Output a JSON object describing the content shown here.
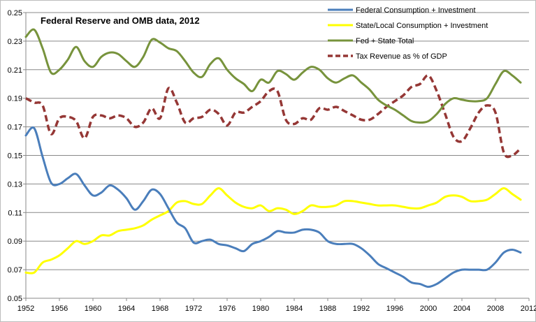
{
  "chart_data": {
    "type": "line",
    "title": "Federal Reserve and OMB data, 2012",
    "xlabel": "",
    "ylabel": "",
    "xlim": [
      1952,
      2012
    ],
    "ylim": [
      0.05,
      0.25
    ],
    "x_ticks": [
      "1952",
      "1956",
      "1960",
      "1964",
      "1968",
      "1972",
      "1976",
      "1980",
      "1984",
      "1988",
      "1992",
      "1996",
      "2000",
      "2004",
      "2008",
      "2012"
    ],
    "y_ticks": [
      "0.05",
      "0.07",
      "0.09",
      "0.11",
      "0.13",
      "0.15",
      "0.17",
      "0.19",
      "0.21",
      "0.23",
      "0.25"
    ],
    "grid": "horizontal",
    "legend_position": "top-right",
    "series": [
      {
        "name": "Federal Consumption + Investment",
        "color": "#4a7ebb",
        "dash": "solid",
        "x": [
          1952,
          1953,
          1954,
          1955,
          1956,
          1957,
          1958,
          1959,
          1960,
          1961,
          1962,
          1963,
          1964,
          1965,
          1966,
          1967,
          1968,
          1969,
          1970,
          1971,
          1972,
          1973,
          1974,
          1975,
          1976,
          1977,
          1978,
          1979,
          1980,
          1981,
          1982,
          1983,
          1984,
          1985,
          1986,
          1987,
          1988,
          1989,
          1990,
          1991,
          1992,
          1993,
          1994,
          1995,
          1996,
          1997,
          1998,
          1999,
          2000,
          2001,
          2002,
          2003,
          2004,
          2005,
          2006,
          2007,
          2008,
          2009,
          2010,
          2011
        ],
        "values": [
          0.164,
          0.169,
          0.149,
          0.131,
          0.13,
          0.134,
          0.137,
          0.129,
          0.122,
          0.124,
          0.129,
          0.126,
          0.12,
          0.112,
          0.118,
          0.126,
          0.123,
          0.113,
          0.103,
          0.099,
          0.089,
          0.09,
          0.091,
          0.088,
          0.087,
          0.085,
          0.083,
          0.088,
          0.09,
          0.093,
          0.097,
          0.096,
          0.096,
          0.098,
          0.098,
          0.096,
          0.09,
          0.088,
          0.088,
          0.088,
          0.085,
          0.08,
          0.074,
          0.071,
          0.068,
          0.065,
          0.061,
          0.06,
          0.058,
          0.06,
          0.064,
          0.068,
          0.07,
          0.07,
          0.07,
          0.07,
          0.075,
          0.082,
          0.084,
          0.082
        ]
      },
      {
        "name": "State/Local Consumption + Investment",
        "color": "#ffff00",
        "dash": "solid",
        "x": [
          1952,
          1953,
          1954,
          1955,
          1956,
          1957,
          1958,
          1959,
          1960,
          1961,
          1962,
          1963,
          1964,
          1965,
          1966,
          1967,
          1968,
          1969,
          1970,
          1971,
          1972,
          1973,
          1974,
          1975,
          1976,
          1977,
          1978,
          1979,
          1980,
          1981,
          1982,
          1983,
          1984,
          1985,
          1986,
          1987,
          1988,
          1989,
          1990,
          1991,
          1992,
          1993,
          1994,
          1995,
          1996,
          1997,
          1998,
          1999,
          2000,
          2001,
          2002,
          2003,
          2004,
          2005,
          2006,
          2007,
          2008,
          2009,
          2010,
          2011
        ],
        "values": [
          0.068,
          0.068,
          0.075,
          0.077,
          0.08,
          0.085,
          0.09,
          0.088,
          0.09,
          0.094,
          0.094,
          0.097,
          0.098,
          0.099,
          0.101,
          0.105,
          0.108,
          0.111,
          0.117,
          0.118,
          0.116,
          0.116,
          0.122,
          0.127,
          0.122,
          0.117,
          0.114,
          0.113,
          0.115,
          0.111,
          0.113,
          0.112,
          0.109,
          0.111,
          0.115,
          0.114,
          0.114,
          0.115,
          0.118,
          0.118,
          0.117,
          0.116,
          0.115,
          0.115,
          0.115,
          0.114,
          0.113,
          0.113,
          0.115,
          0.117,
          0.121,
          0.122,
          0.121,
          0.118,
          0.118,
          0.119,
          0.123,
          0.127,
          0.123,
          0.119
        ]
      },
      {
        "name": "Fed + State Total",
        "color": "#77933c",
        "dash": "solid",
        "x": [
          1952,
          1953,
          1954,
          1955,
          1956,
          1957,
          1958,
          1959,
          1960,
          1961,
          1962,
          1963,
          1964,
          1965,
          1966,
          1967,
          1968,
          1969,
          1970,
          1971,
          1972,
          1973,
          1974,
          1975,
          1976,
          1977,
          1978,
          1979,
          1980,
          1981,
          1982,
          1983,
          1984,
          1985,
          1986,
          1987,
          1988,
          1989,
          1990,
          1991,
          1992,
          1993,
          1994,
          1995,
          1996,
          1997,
          1998,
          1999,
          2000,
          2001,
          2002,
          2003,
          2004,
          2005,
          2006,
          2007,
          2008,
          2009,
          2010,
          2011
        ],
        "values": [
          0.233,
          0.238,
          0.225,
          0.208,
          0.21,
          0.217,
          0.226,
          0.216,
          0.212,
          0.219,
          0.222,
          0.221,
          0.216,
          0.212,
          0.219,
          0.231,
          0.229,
          0.225,
          0.223,
          0.216,
          0.208,
          0.205,
          0.214,
          0.218,
          0.21,
          0.204,
          0.2,
          0.195,
          0.203,
          0.201,
          0.209,
          0.207,
          0.203,
          0.208,
          0.212,
          0.21,
          0.204,
          0.201,
          0.204,
          0.206,
          0.201,
          0.196,
          0.189,
          0.185,
          0.182,
          0.178,
          0.174,
          0.173,
          0.174,
          0.179,
          0.186,
          0.19,
          0.189,
          0.188,
          0.188,
          0.19,
          0.2,
          0.209,
          0.206,
          0.201
        ]
      },
      {
        "name": "Tax Revenue as % of GDP",
        "color": "#953735",
        "dash": "dashed",
        "x": [
          1952,
          1953,
          1954,
          1955,
          1956,
          1957,
          1958,
          1959,
          1960,
          1961,
          1962,
          1963,
          1964,
          1965,
          1966,
          1967,
          1968,
          1969,
          1970,
          1971,
          1972,
          1973,
          1974,
          1975,
          1976,
          1977,
          1978,
          1979,
          1980,
          1981,
          1982,
          1983,
          1984,
          1985,
          1986,
          1987,
          1988,
          1989,
          1990,
          1991,
          1992,
          1993,
          1994,
          1995,
          1996,
          1997,
          1998,
          1999,
          2000,
          2001,
          2002,
          2003,
          2004,
          2005,
          2006,
          2007,
          2008,
          2009,
          2010,
          2011
        ],
        "values": [
          0.19,
          0.187,
          0.185,
          0.165,
          0.176,
          0.177,
          0.174,
          0.162,
          0.177,
          0.178,
          0.176,
          0.178,
          0.176,
          0.17,
          0.173,
          0.183,
          0.176,
          0.197,
          0.187,
          0.173,
          0.176,
          0.177,
          0.182,
          0.179,
          0.171,
          0.18,
          0.18,
          0.184,
          0.188,
          0.195,
          0.195,
          0.175,
          0.172,
          0.176,
          0.175,
          0.183,
          0.182,
          0.184,
          0.181,
          0.178,
          0.175,
          0.175,
          0.179,
          0.184,
          0.188,
          0.192,
          0.198,
          0.2,
          0.206,
          0.195,
          0.179,
          0.163,
          0.16,
          0.169,
          0.18,
          0.185,
          0.18,
          0.152,
          0.15,
          0.155
        ]
      }
    ]
  }
}
